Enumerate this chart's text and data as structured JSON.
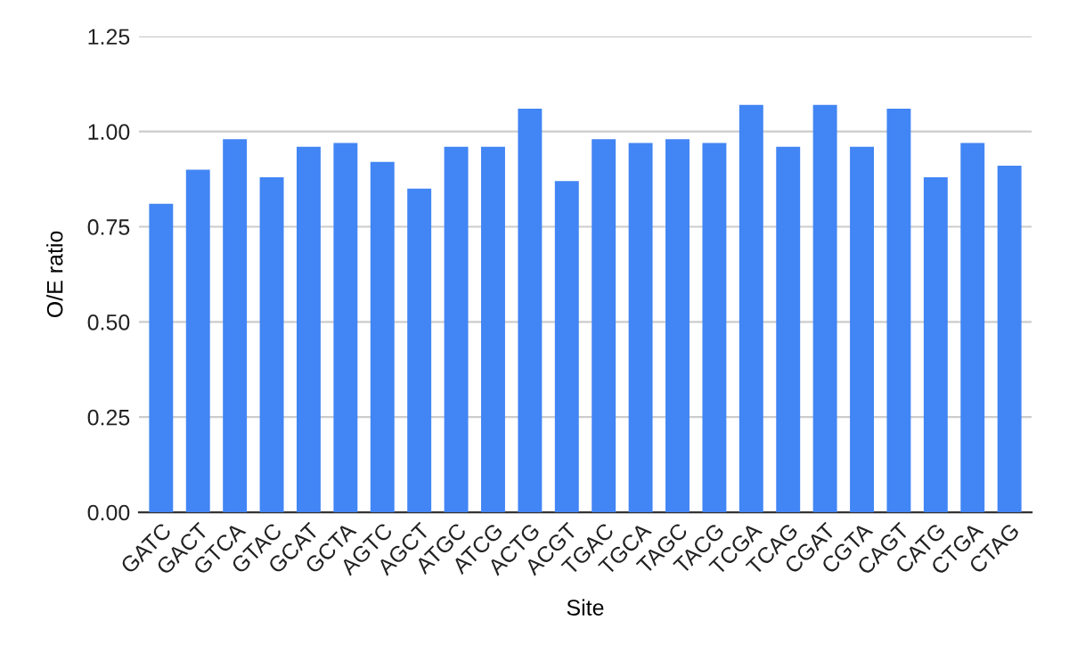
{
  "chart_data": {
    "type": "bar",
    "xlabel": "Site",
    "ylabel": "O/E ratio",
    "categories": [
      "GATC",
      "GACT",
      "GTCA",
      "GTAC",
      "GCAT",
      "GCTA",
      "AGTC",
      "AGCT",
      "ATGC",
      "ATCG",
      "ACTG",
      "ACGT",
      "TGAC",
      "TGCA",
      "TAGC",
      "TACG",
      "TCGA",
      "TCAG",
      "CGAT",
      "CGTA",
      "CAGT",
      "CATG",
      "CTGA",
      "CTAG"
    ],
    "values": [
      0.81,
      0.9,
      0.98,
      0.88,
      0.96,
      0.97,
      0.92,
      0.85,
      0.96,
      0.96,
      1.06,
      0.87,
      0.98,
      0.97,
      0.98,
      0.97,
      1.07,
      0.96,
      1.07,
      0.96,
      1.06,
      0.88,
      0.97,
      0.91
    ],
    "color": "#4285f4",
    "ylim": [
      0,
      1.25
    ],
    "yticks": [
      {
        "value": 0,
        "label": "0.00"
      },
      {
        "value": 0.25,
        "label": "0.25"
      },
      {
        "value": 0.5,
        "label": "0.50"
      },
      {
        "value": 0.75,
        "label": "0.75"
      },
      {
        "value": 1,
        "label": "1.00"
      },
      {
        "value": 1.25,
        "label": "1.25"
      }
    ],
    "grid": "y"
  }
}
